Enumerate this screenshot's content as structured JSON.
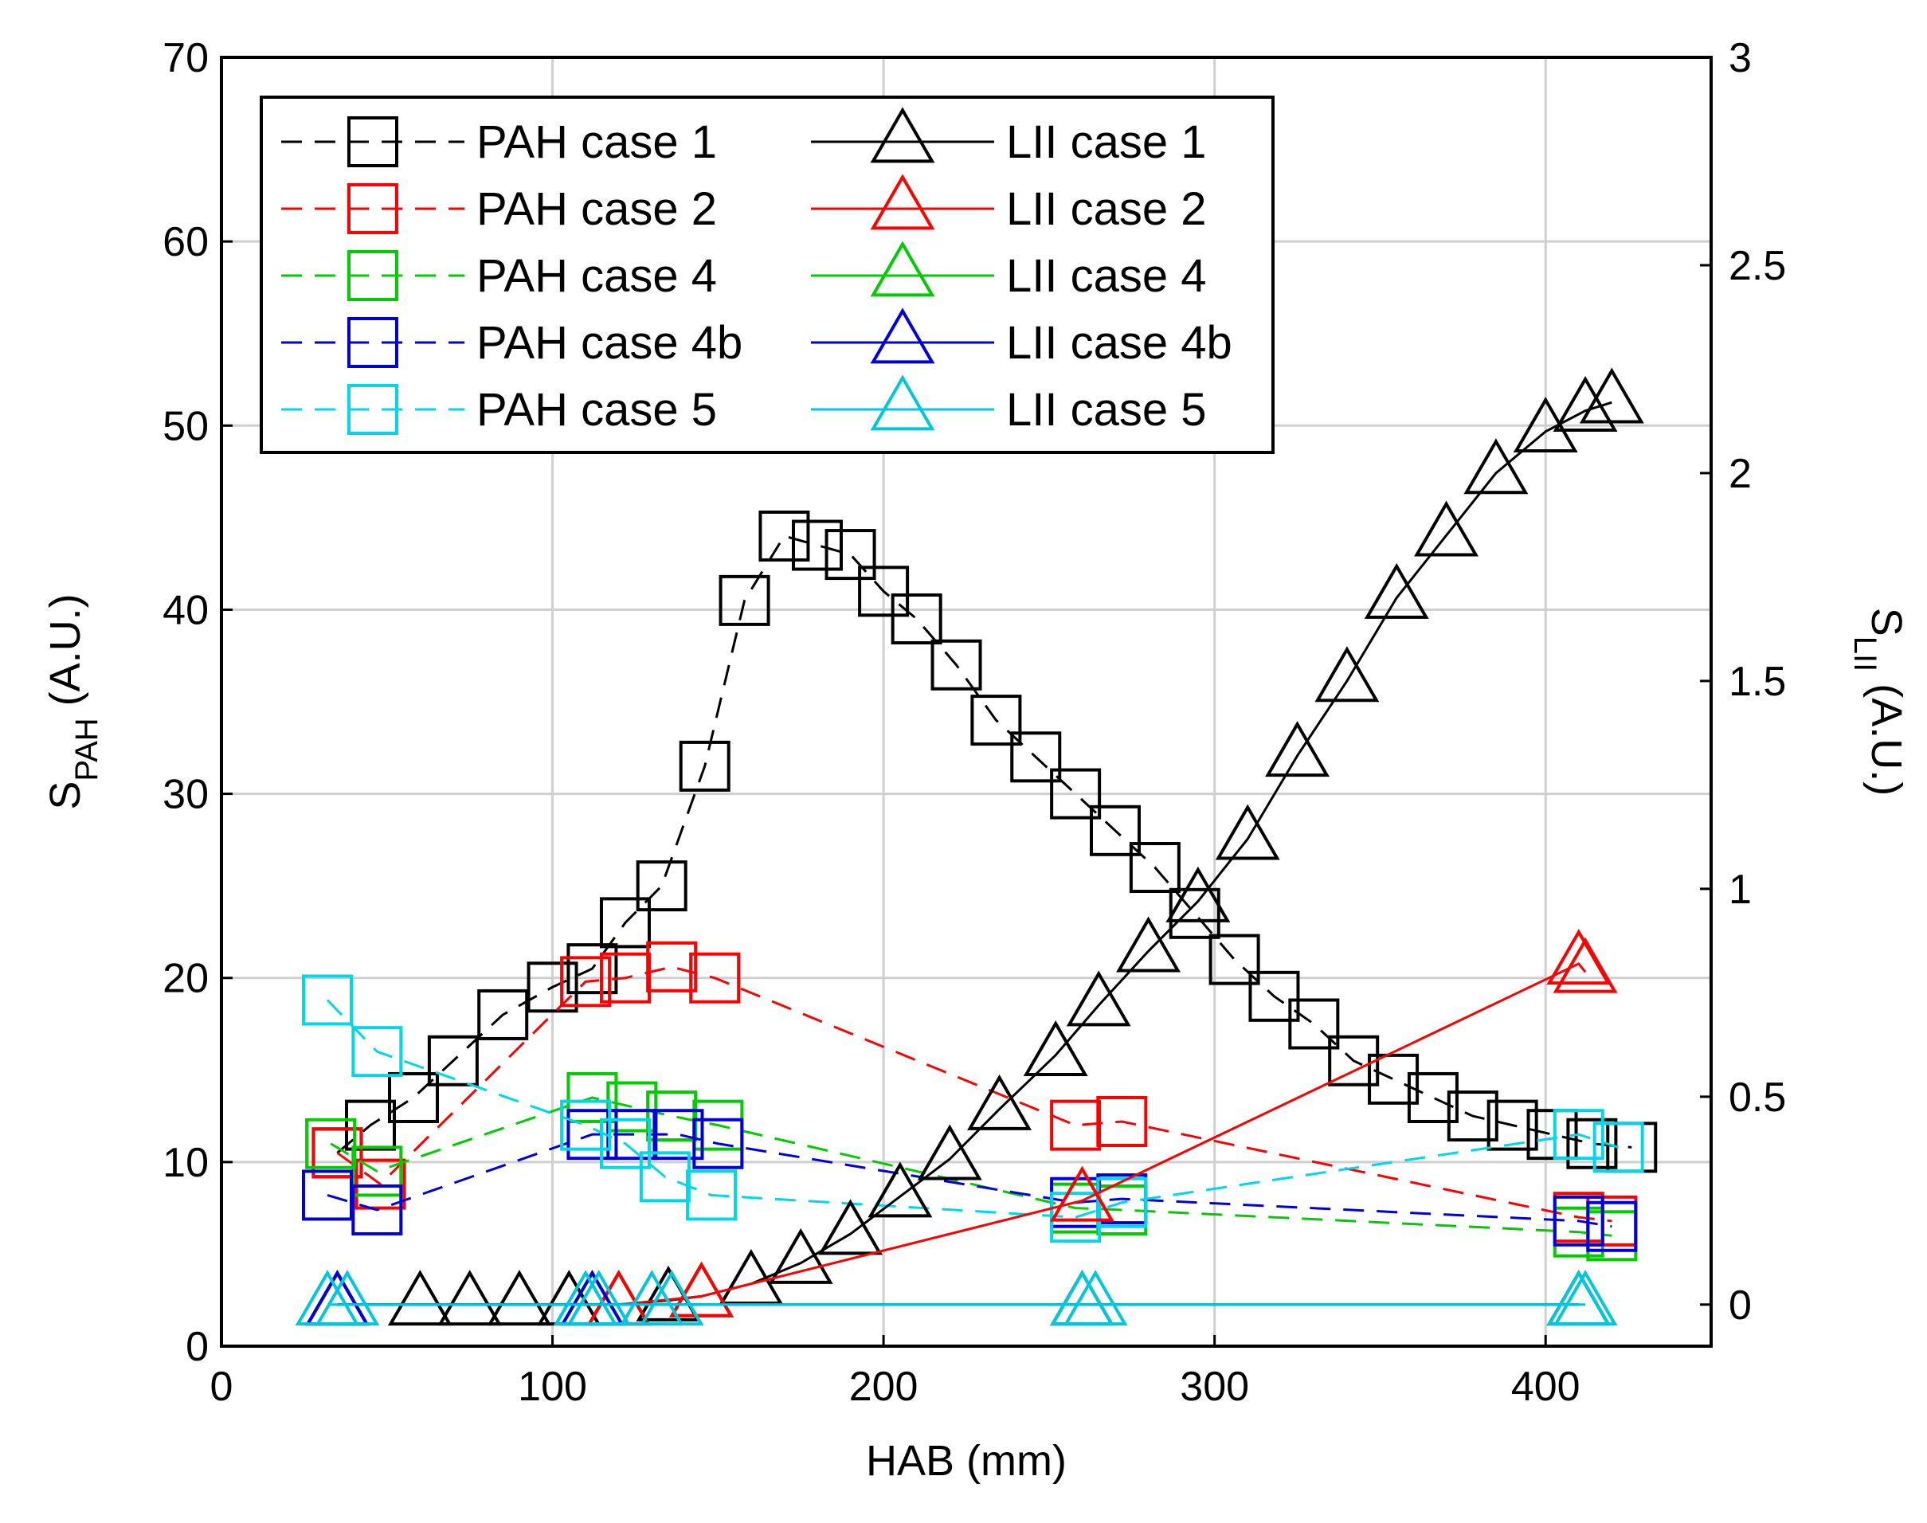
{
  "chart_data": {
    "type": "line",
    "xlabel": "HAB (mm)",
    "ylabel_left": {
      "main": "S",
      "sub": "PAH",
      "unit": " (A.U.)"
    },
    "ylabel_right": {
      "main": "S",
      "sub": "LII",
      "unit": " (A.U.)"
    },
    "xlim": [
      0,
      450
    ],
    "ylim_left": [
      0,
      70
    ],
    "ylim_right": [
      -0.1,
      3
    ],
    "xticks": [
      0,
      100,
      200,
      300,
      400
    ],
    "yticks_left": [
      0,
      10,
      20,
      30,
      40,
      50,
      60,
      70
    ],
    "yticks_right": [
      0,
      0.5,
      1,
      1.5,
      2,
      2.5,
      3
    ],
    "grid": true,
    "legend_position": "top-left",
    "series": [
      {
        "name": "PAH case 1",
        "axis": "left",
        "color": "#000000",
        "marker": "square",
        "line": "dashed",
        "x": [
          35,
          45,
          58,
          70,
          85,
          100,
          112,
          122,
          133,
          146,
          158,
          170,
          180,
          190,
          200,
          210,
          222,
          234,
          246,
          258,
          270,
          282,
          294,
          306,
          318,
          330,
          342,
          354,
          366,
          378,
          390,
          402,
          414,
          426
        ],
        "y": [
          10.5,
          12,
          13.5,
          15.5,
          18,
          19.5,
          20.5,
          23,
          25,
          31.5,
          40.5,
          44,
          43.5,
          43,
          41,
          39.5,
          37,
          34,
          32,
          30,
          28,
          26,
          23.5,
          21,
          19,
          17.5,
          15.5,
          14.5,
          13.5,
          12.5,
          12,
          11.5,
          11,
          10.8
        ]
      },
      {
        "name": "PAH case 2",
        "axis": "left",
        "color": "#ff0000",
        "marker": "square",
        "line": "dashed",
        "x": [
          35,
          48,
          110,
          122,
          136,
          149,
          258,
          272,
          410,
          420
        ],
        "y": [
          10.5,
          8.8,
          19.8,
          20,
          20.6,
          20,
          12,
          12.2,
          7,
          6.8
        ]
      },
      {
        "name": "PAH case 4",
        "axis": "left",
        "color": "#00cc00",
        "marker": "square",
        "line": "dashed",
        "x": [
          33,
          47,
          112,
          124,
          136,
          150,
          258,
          272,
          410,
          420
        ],
        "y": [
          11,
          9.5,
          13.5,
          13,
          12.5,
          12,
          7.5,
          7.4,
          6.2,
          6
        ]
      },
      {
        "name": "PAH case 4b",
        "axis": "left",
        "color": "#0000dd",
        "marker": "square",
        "line": "dashed",
        "x": [
          32,
          47,
          112,
          124,
          138,
          150,
          258,
          272,
          410,
          420
        ],
        "y": [
          8.2,
          7.4,
          11.5,
          11.5,
          11.5,
          11,
          7.8,
          8,
          6.8,
          6.5
        ]
      },
      {
        "name": "PAH case 5",
        "axis": "left",
        "color": "#00d8e8",
        "marker": "square",
        "line": "dashed",
        "x": [
          32,
          47,
          110,
          122,
          134,
          148,
          258,
          272,
          410,
          422
        ],
        "y": [
          18.8,
          16,
          12,
          11,
          9.2,
          8.2,
          7,
          7.8,
          11.5,
          10.8
        ]
      },
      {
        "name": "LII case 1",
        "axis": "right",
        "color": "#000000",
        "marker": "triangle",
        "line": "solid",
        "x": [
          35,
          60,
          75,
          90,
          105,
          120,
          135,
          145,
          160,
          175,
          190,
          205,
          220,
          235,
          252,
          265,
          280,
          295,
          310,
          325,
          340,
          355,
          370,
          385,
          400,
          412,
          420
        ],
        "y": [
          0,
          0,
          0,
          0,
          0,
          0,
          0.01,
          0.02,
          0.05,
          0.1,
          0.17,
          0.26,
          0.35,
          0.47,
          0.6,
          0.72,
          0.85,
          0.97,
          1.12,
          1.32,
          1.5,
          1.7,
          1.85,
          2,
          2.1,
          2.15,
          2.17
        ]
      },
      {
        "name": "LII case 2",
        "axis": "right",
        "color": "#ff0000",
        "marker": "triangle",
        "line": "solid",
        "x": [
          35,
          120,
          145,
          260,
          410,
          412
        ],
        "y": [
          0,
          0,
          0.02,
          0.25,
          0.82,
          0.8
        ]
      },
      {
        "name": "LII case 4",
        "axis": "right",
        "color": "#00cc00",
        "marker": "triangle",
        "line": "solid",
        "x": [
          35,
          112,
          260,
          410
        ],
        "y": [
          0,
          0,
          0,
          0
        ]
      },
      {
        "name": "LII case 4b",
        "axis": "right",
        "color": "#0000dd",
        "marker": "triangle",
        "line": "solid",
        "x": [
          35,
          112,
          260,
          410
        ],
        "y": [
          0,
          0,
          0,
          0
        ]
      },
      {
        "name": "LII case 5",
        "axis": "right",
        "color": "#00c8dc",
        "marker": "triangle",
        "line": "solid",
        "x": [
          32,
          38,
          110,
          114,
          130,
          136,
          260,
          264,
          410,
          412
        ],
        "y": [
          0,
          0,
          0,
          0,
          0,
          0,
          0,
          0,
          0,
          0
        ]
      }
    ]
  }
}
